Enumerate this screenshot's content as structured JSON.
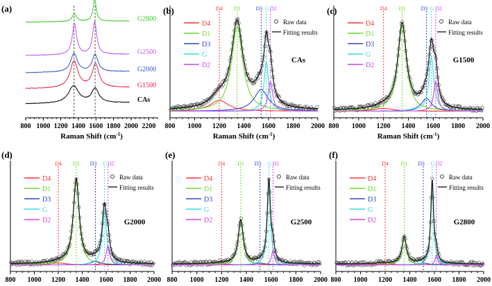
{
  "chart_data": [
    {
      "panel": "(a)",
      "type": "line",
      "xlabel": "Raman Shift (cm-1)",
      "xlim": [
        800,
        2300
      ],
      "xticks": [
        800,
        1000,
        1200,
        1400,
        1600,
        1800,
        2000,
        2200
      ],
      "reference_lines": [
        1350,
        1590
      ],
      "series": [
        {
          "name": "CAs",
          "color": "#000000",
          "peaks": [
            [
              1345,
              0.55,
              70
            ],
            [
              1590,
              0.45,
              50
            ]
          ]
        },
        {
          "name": "G1500",
          "color": "#ee2244",
          "peaks": [
            [
              1350,
              0.85,
              55
            ],
            [
              1595,
              0.75,
              45
            ]
          ]
        },
        {
          "name": "G2000",
          "color": "#3355cc",
          "peaks": [
            [
              1350,
              0.6,
              45
            ],
            [
              1590,
              0.55,
              40
            ]
          ]
        },
        {
          "name": "G2500",
          "color": "#bb55ee",
          "peaks": [
            [
              1355,
              1.0,
              30
            ],
            [
              1585,
              1.05,
              28
            ]
          ]
        },
        {
          "name": "G2800",
          "color": "#33cc22",
          "peaks": [
            [
              1355,
              0.25,
              30
            ],
            [
              1585,
              0.7,
              22
            ]
          ]
        }
      ]
    },
    {
      "panel": "(b)",
      "type": "line",
      "sample": "CAs",
      "xlabel": "Raman Shift (cm-1)",
      "xlim": [
        800,
        2000
      ],
      "xticks": [
        800,
        1000,
        1200,
        1400,
        1600,
        1800,
        2000
      ],
      "components": [
        {
          "name": "D4",
          "center": 1200,
          "amp": 0.11,
          "width": 90
        },
        {
          "name": "D1",
          "center": 1345,
          "amp": 0.86,
          "width": 55
        },
        {
          "name": "D3",
          "center": 1540,
          "amp": 0.22,
          "width": 70
        },
        {
          "name": "G",
          "center": 1582,
          "amp": 0.5,
          "width": 22
        },
        {
          "name": "D2",
          "center": 1615,
          "amp": 0.3,
          "width": 22
        }
      ],
      "legend": [
        "Raw data",
        "Fitting results"
      ]
    },
    {
      "panel": "(c)",
      "type": "line",
      "sample": "G1500",
      "xlabel": "Raman Shift (cm-1)",
      "xlim": [
        800,
        2000
      ],
      "xticks": [
        800,
        1000,
        1200,
        1400,
        1600,
        1800,
        2000
      ],
      "components": [
        {
          "name": "D4",
          "center": 1200,
          "amp": 0.03,
          "width": 90
        },
        {
          "name": "D1",
          "center": 1350,
          "amp": 0.87,
          "width": 42
        },
        {
          "name": "D3",
          "center": 1545,
          "amp": 0.13,
          "width": 50
        },
        {
          "name": "G",
          "center": 1585,
          "amp": 0.55,
          "width": 25
        },
        {
          "name": "D2",
          "center": 1620,
          "amp": 0.3,
          "width": 20
        }
      ],
      "legend": [
        "Raw data",
        "Fitting results"
      ]
    },
    {
      "panel": "(d)",
      "type": "line",
      "sample": "G2000",
      "xlabel": "Raman Shift (cm-1)",
      "xlim": [
        800,
        2000
      ],
      "xticks": [
        800,
        1000,
        1200,
        1400,
        1600,
        1800,
        2000
      ],
      "components": [
        {
          "name": "D4",
          "center": 1200,
          "amp": 0.02,
          "width": 90
        },
        {
          "name": "D1",
          "center": 1350,
          "amp": 0.87,
          "width": 30
        },
        {
          "name": "D3",
          "center": 1510,
          "amp": 0.04,
          "width": 50
        },
        {
          "name": "G",
          "center": 1585,
          "amp": 0.55,
          "width": 22
        },
        {
          "name": "D2",
          "center": 1615,
          "amp": 0.2,
          "width": 18
        }
      ],
      "legend": [
        "Raw data",
        "Fitting results"
      ]
    },
    {
      "panel": "(e)",
      "type": "line",
      "sample": "G2500",
      "xlabel": "Raman Shift (cm-1)",
      "xlim": [
        800,
        2000
      ],
      "xticks": [
        800,
        1000,
        1200,
        1400,
        1600,
        1800,
        2000
      ],
      "components": [
        {
          "name": "D4",
          "center": 1200,
          "amp": 0.01,
          "width": 90
        },
        {
          "name": "D1",
          "center": 1355,
          "amp": 0.45,
          "width": 25
        },
        {
          "name": "D3",
          "center": 1510,
          "amp": 0.02,
          "width": 50
        },
        {
          "name": "G",
          "center": 1582,
          "amp": 0.85,
          "width": 16
        },
        {
          "name": "D2",
          "center": 1615,
          "amp": 0.15,
          "width": 14
        }
      ],
      "legend": [
        "Raw data",
        "Fitting results"
      ]
    },
    {
      "panel": "(f)",
      "type": "line",
      "sample": "G2800",
      "xlabel": "Raman Shift (cm-1)",
      "xlim": [
        800,
        2000
      ],
      "xticks": [
        800,
        1000,
        1200,
        1400,
        1600,
        1800,
        2000
      ],
      "components": [
        {
          "name": "D4",
          "center": 1200,
          "amp": 0.01,
          "width": 90
        },
        {
          "name": "D1",
          "center": 1355,
          "amp": 0.28,
          "width": 22
        },
        {
          "name": "D3",
          "center": 1510,
          "amp": 0.02,
          "width": 50
        },
        {
          "name": "G",
          "center": 1582,
          "amp": 0.85,
          "width": 14
        },
        {
          "name": "D2",
          "center": 1615,
          "amp": 0.1,
          "width": 12
        }
      ],
      "legend": [
        "Raw data",
        "Fitting results"
      ]
    }
  ],
  "component_colors": {
    "D4": "#ff3333",
    "D1": "#66dd22",
    "D3": "#3344cc",
    "G": "#33dddd",
    "D2": "#cc44ee"
  },
  "xlabel_text": "Raman Shift (cm",
  "xlabel_sup": "-1",
  "xlabel_end": ")"
}
